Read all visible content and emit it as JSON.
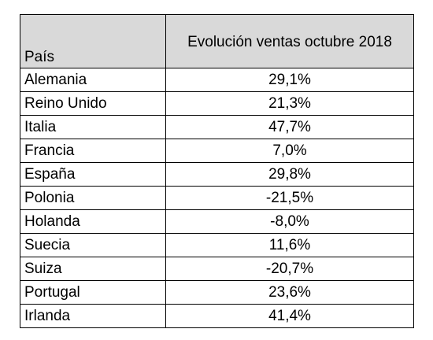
{
  "table": {
    "headers": {
      "country": "País",
      "value": "Evolución ventas octubre 2018"
    },
    "rows": [
      {
        "country": "Alemania",
        "value": "29,1%"
      },
      {
        "country": "Reino Unido",
        "value": "21,3%"
      },
      {
        "country": "Italia",
        "value": "47,7%"
      },
      {
        "country": "Francia",
        "value": "7,0%"
      },
      {
        "country": "España",
        "value": "29,8%"
      },
      {
        "country": "Polonia",
        "value": "-21,5%"
      },
      {
        "country": "Holanda",
        "value": "-8,0%"
      },
      {
        "country": "Suecia",
        "value": "11,6%"
      },
      {
        "country": "Suiza",
        "value": "-20,7%"
      },
      {
        "country": "Portugal",
        "value": "23,6%"
      },
      {
        "country": "Irlanda",
        "value": "41,4%"
      }
    ]
  }
}
